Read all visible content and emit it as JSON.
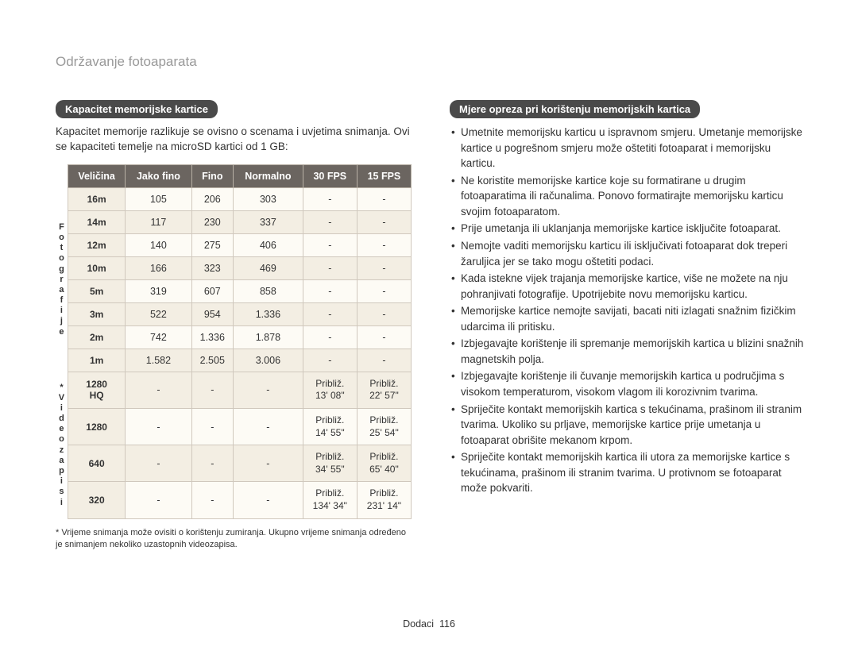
{
  "page_title": "Održavanje fotoaparata",
  "left": {
    "header": "Kapacitet memorijske kartice",
    "intro": "Kapacitet memorije razlikuje se ovisno o scenama i uvjetima snimanja. Ovi se kapaciteti temelje na microSD kartici od 1 GB:",
    "vlabel_photo": "F\no\nt\no\ng\nr\na\nf\ni\nj\ne",
    "vlabel_video": "*\nV\ni\nd\ne\no\nz\na\np\ni\ns\ni",
    "headers": [
      "Veličina",
      "Jako fino",
      "Fino",
      "Normalno",
      "30 FPS",
      "15 FPS"
    ],
    "photo_rows": [
      {
        "size": "16m",
        "jf": "105",
        "f": "206",
        "n": "303",
        "fps30": "-",
        "fps15": "-"
      },
      {
        "size": "14m",
        "jf": "117",
        "f": "230",
        "n": "337",
        "fps30": "-",
        "fps15": "-"
      },
      {
        "size": "12m",
        "jf": "140",
        "f": "275",
        "n": "406",
        "fps30": "-",
        "fps15": "-"
      },
      {
        "size": "10m",
        "jf": "166",
        "f": "323",
        "n": "469",
        "fps30": "-",
        "fps15": "-"
      },
      {
        "size": "5m",
        "jf": "319",
        "f": "607",
        "n": "858",
        "fps30": "-",
        "fps15": "-"
      },
      {
        "size": "3m",
        "jf": "522",
        "f": "954",
        "n": "1.336",
        "fps30": "-",
        "fps15": "-"
      },
      {
        "size": "2m",
        "jf": "742",
        "f": "1.336",
        "n": "1.878",
        "fps30": "-",
        "fps15": "-"
      },
      {
        "size": "1m",
        "jf": "1.582",
        "f": "2.505",
        "n": "3.006",
        "fps30": "-",
        "fps15": "-"
      }
    ],
    "video_rows": [
      {
        "size": "1280\nHQ",
        "jf": "-",
        "f": "-",
        "n": "-",
        "fps30a": "Približ.",
        "fps30b": "13' 08\"",
        "fps15a": "Približ.",
        "fps15b": "22' 57\""
      },
      {
        "size": "1280",
        "jf": "-",
        "f": "-",
        "n": "-",
        "fps30a": "Približ.",
        "fps30b": "14' 55\"",
        "fps15a": "Približ.",
        "fps15b": "25' 54\""
      },
      {
        "size": "640",
        "jf": "-",
        "f": "-",
        "n": "-",
        "fps30a": "Približ.",
        "fps30b": "34' 55\"",
        "fps15a": "Približ.",
        "fps15b": "65' 40\""
      },
      {
        "size": "320",
        "jf": "-",
        "f": "-",
        "n": "-",
        "fps30a": "Približ.",
        "fps30b": "134' 34\"",
        "fps15a": "Približ.",
        "fps15b": "231' 14\""
      }
    ],
    "footnote": "* Vrijeme snimanja može ovisiti o korištenju zumiranja. Ukupno vrijeme snimanja određeno je snimanjem nekoliko uzastopnih videozapisa."
  },
  "right": {
    "header": "Mjere opreza pri korištenju memorijskih kartica",
    "bullets": [
      "Umetnite memorijsku karticu u ispravnom smjeru. Umetanje memorijske kartice u pogrešnom smjeru može oštetiti fotoaparat i memorijsku karticu.",
      "Ne koristite memorijske kartice koje su formatirane u drugim fotoaparatima ili računalima. Ponovo formatirajte memorijsku karticu svojim fotoaparatom.",
      "Prije umetanja ili uklanjanja memorijske kartice isključite fotoaparat.",
      "Nemojte vaditi memorijsku karticu ili isključivati fotoaparat dok treperi žaruljica jer se tako mogu oštetiti podaci.",
      "Kada istekne vijek trajanja memorijske kartice, više ne možete na nju pohranjivati fotografije. Upotrijebite novu memorijsku karticu.",
      "Memorijske kartice nemojte savijati, bacati niti izlagati snažnim fizičkim udarcima ili pritisku.",
      "Izbjegavajte korištenje ili spremanje memorijskih kartica u blizini snažnih magnetskih polja.",
      "Izbjegavajte korištenje ili čuvanje memorijskih kartica u područjima s visokom temperaturom, visokom vlagom ili korozivnim tvarima.",
      "Spriječite kontakt memorijskih kartica s tekućinama, prašinom ili stranim tvarima. Ukoliko su prljave, memorijske kartice prije umetanja u fotoaparat obrišite mekanom krpom.",
      "Spriječite kontakt memorijskih kartica ili utora za memorijske kartice s tekućinama, prašinom ili stranim tvarima. U protivnom se fotoaparat može pokvariti."
    ]
  },
  "footer_label": "Dodaci",
  "footer_page": "116"
}
